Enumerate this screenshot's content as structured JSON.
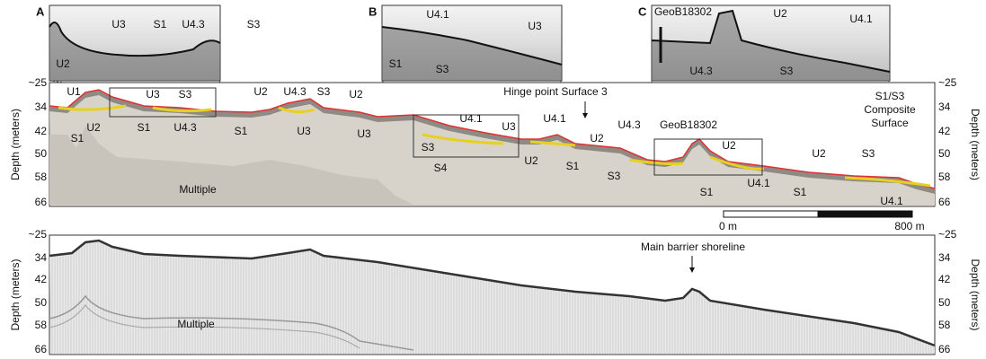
{
  "insets": [
    {
      "letter": "A",
      "labels": [
        "U3",
        "S1",
        "U4.3",
        "S3",
        "U2"
      ]
    },
    {
      "letter": "B",
      "labels": [
        "U4.1",
        "U3",
        "S1",
        "S3"
      ]
    },
    {
      "letter": "C",
      "labels": [
        "GeoB18302",
        "U2",
        "U4.1",
        "U4.3",
        "S3"
      ]
    }
  ],
  "upper_panel": {
    "y_axis_title": "Depth (meters)",
    "y2_axis_title": "Depth (meters)",
    "yticks": [
      "~25",
      "34",
      "42",
      "50",
      "58",
      "66"
    ],
    "labels": [
      "U1",
      "U2",
      "S1",
      "U3",
      "S3",
      "S1",
      "U4.3",
      "U2",
      "U4.3",
      "S3",
      "U2",
      "S1",
      "U3",
      "U3",
      "U4.1",
      "U3",
      "S3",
      "S4",
      "U2",
      "U4.1",
      "U2",
      "U4.3",
      "S1",
      "S3",
      "GeoB18302",
      "U2",
      "S1",
      "U4.1",
      "U2",
      "S3",
      "S1",
      "U4.1"
    ],
    "hinge_annotation": "Hinge point Surface 3",
    "composite_annotation": [
      "S1/S3",
      "Composite",
      "Surface"
    ],
    "multiple_label": "Multiple"
  },
  "scale_bar": {
    "start": "0 m",
    "end": "800 m"
  },
  "lower_panel": {
    "y_axis_title": "Depth (meters)",
    "y2_axis_title": "Depth (meters)",
    "yticks": [
      "~25",
      "34",
      "42",
      "50",
      "58",
      "66"
    ],
    "annotation": "Main barrier shoreline",
    "multiple_label": "Multiple"
  }
}
